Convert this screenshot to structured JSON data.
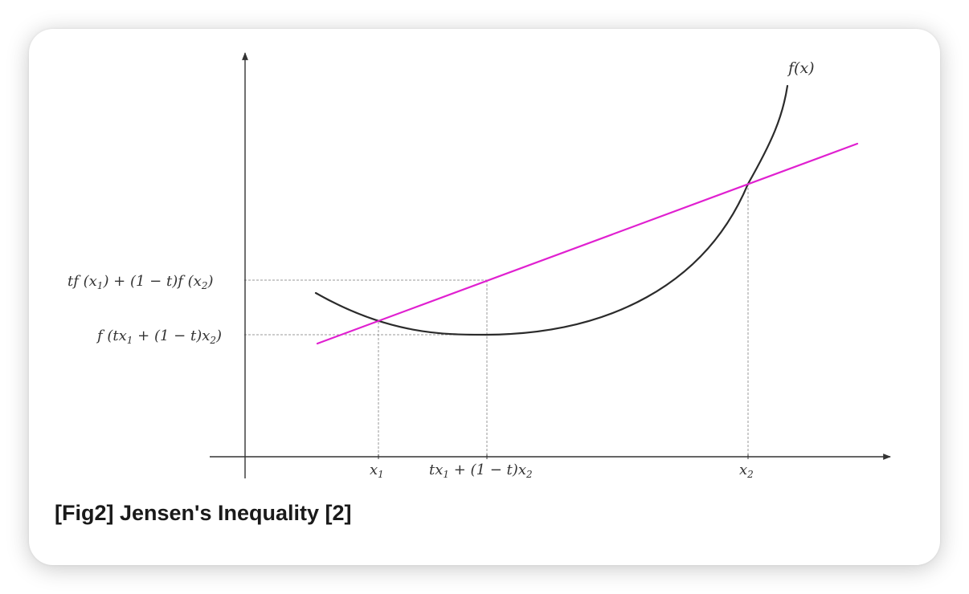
{
  "caption": "[Fig2] Jensen's Inequality [2]",
  "figure": {
    "curve_label": "f(x)",
    "x_labels": {
      "x1": "x",
      "x1_sub": "1",
      "mid_a": "tx",
      "mid_a_sub": "1",
      "mid_b": " + (1 − t)x",
      "mid_b_sub": "2",
      "x2": "x",
      "x2_sub": "2"
    },
    "y_labels": {
      "upper_a": "tf (x",
      "upper_a_sub": "1",
      "upper_b": ") + (1 − t)f (x",
      "upper_b_sub": "2",
      "upper_c": ")",
      "lower_a": "f (tx",
      "lower_a_sub": "1",
      "lower_b": " + (1 − t)x",
      "lower_b_sub": "2",
      "lower_c": ")"
    },
    "colors": {
      "curve": "#2b2b2b",
      "secant": "#e020d0",
      "axis": "#333333",
      "guide": "#9a9a9a"
    }
  }
}
